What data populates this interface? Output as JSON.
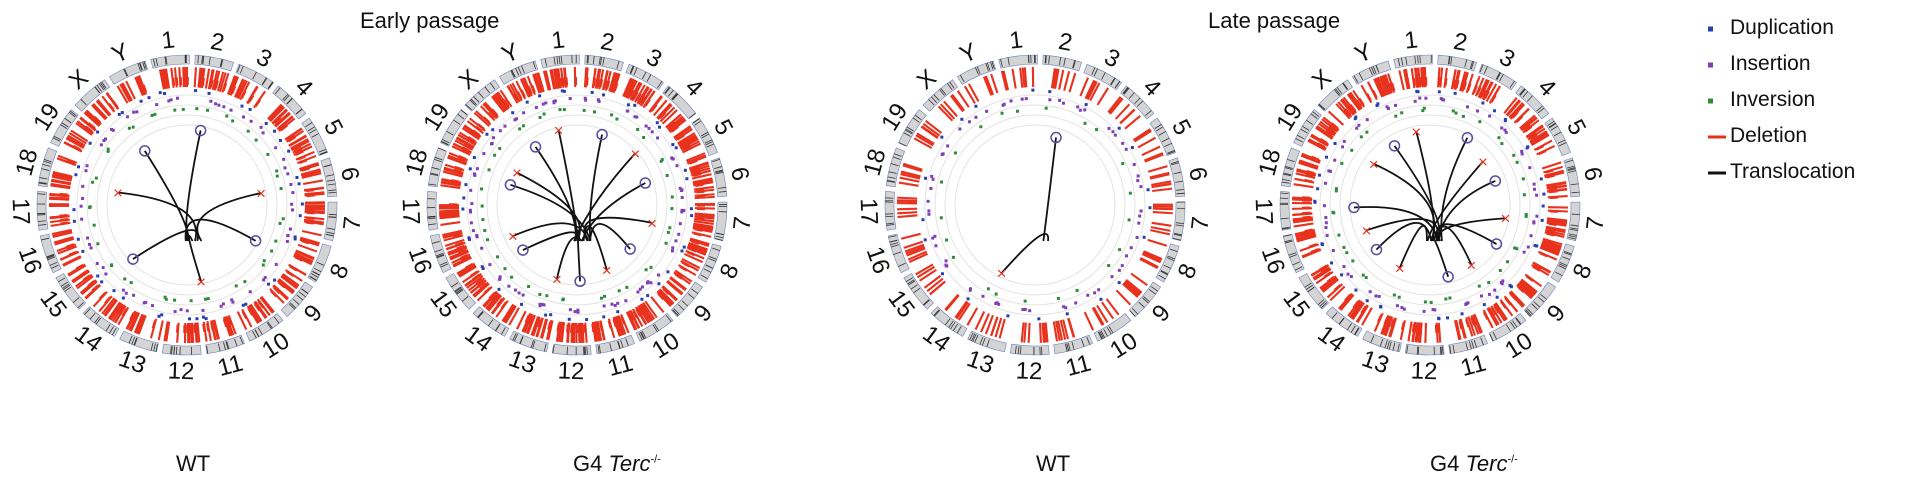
{
  "panel_titles": [
    "Early passage",
    "Late passage"
  ],
  "legend": [
    {
      "label": "Duplication",
      "color": "#2a3fae",
      "mark": "square"
    },
    {
      "label": "Insertion",
      "color": "#7f3fb5",
      "mark": "square"
    },
    {
      "label": "Inversion",
      "color": "#2e8b3a",
      "mark": "square"
    },
    {
      "label": "Deletion",
      "color": "#e8321e",
      "mark": "line"
    },
    {
      "label": "Translocation",
      "color": "#111111",
      "mark": "line"
    }
  ],
  "chromosomes": [
    "1",
    "2",
    "3",
    "4",
    "5",
    "6",
    "7",
    "8",
    "9",
    "10",
    "11",
    "12",
    "13",
    "14",
    "15",
    "16",
    "17",
    "18",
    "19",
    "X",
    "Y"
  ],
  "circos": [
    {
      "label_main": "WT",
      "label_italic": "",
      "label_sup": "",
      "group": "Early passage",
      "deletion_density": "high",
      "translocation_ends": 7
    },
    {
      "label_main": "G4 ",
      "label_italic": "Terc",
      "label_sup": "-/-",
      "group": "Early passage",
      "deletion_density": "very high",
      "translocation_ends": 14
    },
    {
      "label_main": "WT",
      "label_italic": "",
      "label_sup": "",
      "group": "Late passage",
      "deletion_density": "medium",
      "translocation_ends": 2
    },
    {
      "label_main": "G4 ",
      "label_italic": "Terc",
      "label_sup": "-/-",
      "group": "Late passage",
      "deletion_density": "high",
      "translocation_ends": 14
    }
  ]
}
